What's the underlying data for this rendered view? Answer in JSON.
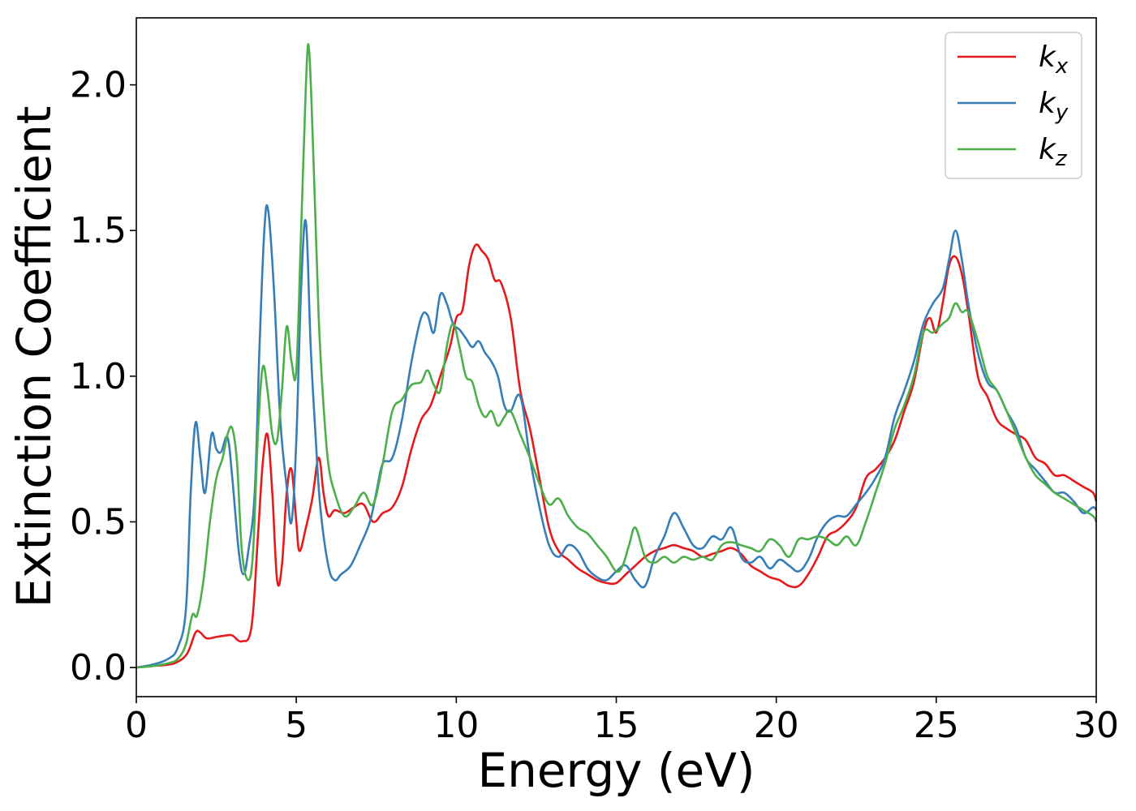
{
  "chart_data": {
    "type": "line",
    "xlabel": "Energy (eV)",
    "ylabel": "Extinction Coefficient",
    "xlim": [
      0,
      30
    ],
    "ylim": [
      -0.1,
      2.23
    ],
    "xticks": [
      0,
      5,
      10,
      15,
      20,
      25,
      30
    ],
    "xtick_labels": [
      "0",
      "5",
      "10",
      "15",
      "20",
      "25",
      "30"
    ],
    "yticks": [
      0.0,
      0.5,
      1.0,
      1.5,
      2.0
    ],
    "ytick_labels": [
      "0.0",
      "0.5",
      "1.0",
      "1.5",
      "2.0"
    ],
    "grid": false,
    "legend_position": "top-right",
    "series": [
      {
        "name": "k_x",
        "label_base": "k",
        "label_sub": "x",
        "color": "#e41a1c",
        "x": [
          0,
          0.5,
          1.0,
          1.3,
          1.6,
          1.85,
          2.0,
          2.2,
          2.5,
          2.8,
          3.0,
          3.3,
          3.6,
          3.8,
          3.95,
          4.1,
          4.25,
          4.4,
          4.55,
          4.7,
          4.85,
          5.0,
          5.1,
          5.3,
          5.5,
          5.7,
          5.85,
          6.0,
          6.2,
          6.5,
          6.8,
          7.1,
          7.4,
          7.7,
          8.0,
          8.3,
          8.6,
          8.9,
          9.2,
          9.5,
          9.8,
          10.0,
          10.2,
          10.4,
          10.6,
          10.8,
          11.0,
          11.2,
          11.4,
          11.7,
          12.0,
          12.3,
          12.6,
          12.9,
          13.2,
          13.5,
          13.8,
          14.1,
          14.4,
          14.7,
          15.0,
          15.3,
          15.6,
          15.9,
          16.2,
          16.5,
          16.8,
          17.1,
          17.4,
          17.7,
          18.0,
          18.3,
          18.6,
          18.9,
          19.2,
          19.5,
          19.8,
          20.1,
          20.4,
          20.7,
          21.0,
          21.3,
          21.6,
          21.9,
          22.2,
          22.5,
          22.8,
          23.1,
          23.4,
          23.7,
          24.0,
          24.3,
          24.6,
          24.8,
          25.0,
          25.2,
          25.4,
          25.6,
          25.8,
          26.0,
          26.3,
          26.6,
          26.9,
          27.2,
          27.5,
          27.8,
          28.1,
          28.4,
          28.7,
          29.0,
          29.3,
          29.6,
          29.9,
          30.0
        ],
        "y": [
          0.0,
          0.005,
          0.01,
          0.02,
          0.05,
          0.12,
          0.12,
          0.1,
          0.105,
          0.11,
          0.11,
          0.09,
          0.14,
          0.45,
          0.7,
          0.8,
          0.6,
          0.3,
          0.35,
          0.6,
          0.68,
          0.5,
          0.4,
          0.48,
          0.58,
          0.72,
          0.6,
          0.52,
          0.54,
          0.53,
          0.55,
          0.56,
          0.5,
          0.53,
          0.55,
          0.62,
          0.75,
          0.85,
          0.9,
          1.0,
          1.1,
          1.2,
          1.23,
          1.38,
          1.45,
          1.43,
          1.4,
          1.33,
          1.32,
          1.2,
          0.95,
          0.82,
          0.65,
          0.48,
          0.4,
          0.37,
          0.34,
          0.32,
          0.3,
          0.29,
          0.29,
          0.32,
          0.35,
          0.38,
          0.4,
          0.41,
          0.42,
          0.41,
          0.4,
          0.38,
          0.39,
          0.4,
          0.41,
          0.39,
          0.35,
          0.33,
          0.31,
          0.3,
          0.28,
          0.28,
          0.32,
          0.38,
          0.45,
          0.47,
          0.5,
          0.55,
          0.65,
          0.68,
          0.72,
          0.78,
          0.88,
          0.98,
          1.15,
          1.2,
          1.15,
          1.25,
          1.38,
          1.41,
          1.35,
          1.22,
          1.0,
          0.93,
          0.85,
          0.82,
          0.8,
          0.78,
          0.72,
          0.7,
          0.66,
          0.66,
          0.64,
          0.62,
          0.6,
          0.57
        ]
      },
      {
        "name": "k_y",
        "label_base": "k",
        "label_sub": "y",
        "color": "#377eb8",
        "x": [
          0,
          0.5,
          1.0,
          1.3,
          1.55,
          1.7,
          1.85,
          2.0,
          2.15,
          2.35,
          2.5,
          2.65,
          2.85,
          3.0,
          3.2,
          3.35,
          3.5,
          3.7,
          3.85,
          4.0,
          4.12,
          4.3,
          4.5,
          4.7,
          4.85,
          5.0,
          5.15,
          5.3,
          5.45,
          5.6,
          5.75,
          6.0,
          6.2,
          6.4,
          6.7,
          7.0,
          7.3,
          7.5,
          7.7,
          8.0,
          8.3,
          8.6,
          8.9,
          9.1,
          9.3,
          9.5,
          9.7,
          9.9,
          10.1,
          10.3,
          10.5,
          10.7,
          10.9,
          11.1,
          11.3,
          11.5,
          11.7,
          12.0,
          12.3,
          12.6,
          12.9,
          13.2,
          13.5,
          13.8,
          14.1,
          14.4,
          14.7,
          15.0,
          15.3,
          15.6,
          15.9,
          16.2,
          16.5,
          16.8,
          17.1,
          17.4,
          17.7,
          18.0,
          18.3,
          18.6,
          18.9,
          19.2,
          19.5,
          19.8,
          20.1,
          20.4,
          20.7,
          21.0,
          21.3,
          21.6,
          21.9,
          22.2,
          22.5,
          22.8,
          23.1,
          23.4,
          23.7,
          24.0,
          24.3,
          24.6,
          24.9,
          25.2,
          25.4,
          25.6,
          25.8,
          26.0,
          26.3,
          26.6,
          26.9,
          27.2,
          27.5,
          27.8,
          28.1,
          28.4,
          28.7,
          29.0,
          29.3,
          29.6,
          29.9,
          30.0
        ],
        "y": [
          0.0,
          0.01,
          0.03,
          0.07,
          0.2,
          0.6,
          0.84,
          0.72,
          0.6,
          0.8,
          0.75,
          0.74,
          0.79,
          0.65,
          0.4,
          0.32,
          0.4,
          0.6,
          1.1,
          1.5,
          1.57,
          1.3,
          0.85,
          0.62,
          0.5,
          0.78,
          1.3,
          1.53,
          1.1,
          0.8,
          0.55,
          0.35,
          0.3,
          0.32,
          0.35,
          0.42,
          0.5,
          0.6,
          0.7,
          0.72,
          0.85,
          1.05,
          1.2,
          1.21,
          1.15,
          1.28,
          1.25,
          1.18,
          1.16,
          1.13,
          1.1,
          1.12,
          1.08,
          1.05,
          1.0,
          0.9,
          0.88,
          0.93,
          0.72,
          0.55,
          0.42,
          0.38,
          0.42,
          0.4,
          0.34,
          0.31,
          0.3,
          0.33,
          0.35,
          0.3,
          0.28,
          0.38,
          0.45,
          0.53,
          0.48,
          0.42,
          0.41,
          0.45,
          0.44,
          0.48,
          0.38,
          0.36,
          0.38,
          0.34,
          0.37,
          0.35,
          0.33,
          0.37,
          0.45,
          0.5,
          0.52,
          0.52,
          0.56,
          0.6,
          0.65,
          0.72,
          0.86,
          0.95,
          1.05,
          1.18,
          1.25,
          1.3,
          1.4,
          1.5,
          1.4,
          1.25,
          1.08,
          0.98,
          0.95,
          0.88,
          0.82,
          0.72,
          0.68,
          0.64,
          0.6,
          0.6,
          0.57,
          0.53,
          0.55,
          0.54
        ]
      },
      {
        "name": "k_z",
        "label_base": "k",
        "label_sub": "z",
        "color": "#4daf4a",
        "x": [
          0,
          0.5,
          1.0,
          1.3,
          1.55,
          1.75,
          1.9,
          2.1,
          2.3,
          2.5,
          2.7,
          2.85,
          3.0,
          3.15,
          3.3,
          3.5,
          3.65,
          3.8,
          3.95,
          4.1,
          4.25,
          4.4,
          4.55,
          4.7,
          4.85,
          5.0,
          5.15,
          5.3,
          5.4,
          5.55,
          5.7,
          5.85,
          6.0,
          6.2,
          6.5,
          6.8,
          7.1,
          7.4,
          7.7,
          8.0,
          8.3,
          8.6,
          8.9,
          9.1,
          9.3,
          9.5,
          9.7,
          9.9,
          10.1,
          10.3,
          10.5,
          10.7,
          10.9,
          11.1,
          11.3,
          11.5,
          11.7,
          12.0,
          12.3,
          12.6,
          12.9,
          13.2,
          13.5,
          13.8,
          14.1,
          14.4,
          14.7,
          15.0,
          15.2,
          15.4,
          15.6,
          15.9,
          16.2,
          16.5,
          16.8,
          17.1,
          17.4,
          17.7,
          18.0,
          18.3,
          18.6,
          18.9,
          19.2,
          19.5,
          19.8,
          20.1,
          20.4,
          20.7,
          21.0,
          21.3,
          21.6,
          21.9,
          22.2,
          22.5,
          22.8,
          23.1,
          23.4,
          23.7,
          24.0,
          24.3,
          24.6,
          24.9,
          25.2,
          25.4,
          25.6,
          25.8,
          26.0,
          26.3,
          26.6,
          26.9,
          27.2,
          27.5,
          27.8,
          28.1,
          28.4,
          28.7,
          29.0,
          29.3,
          29.6,
          29.9,
          30.0
        ],
        "y": [
          0.0,
          0.005,
          0.015,
          0.03,
          0.08,
          0.18,
          0.18,
          0.3,
          0.5,
          0.65,
          0.72,
          0.8,
          0.82,
          0.7,
          0.4,
          0.3,
          0.4,
          0.8,
          1.03,
          0.95,
          0.8,
          0.78,
          0.95,
          1.17,
          1.05,
          1.02,
          1.5,
          2.0,
          2.12,
          1.7,
          1.2,
          0.9,
          0.7,
          0.6,
          0.52,
          0.55,
          0.6,
          0.56,
          0.7,
          0.88,
          0.92,
          0.97,
          0.98,
          1.02,
          0.97,
          0.95,
          1.1,
          1.18,
          1.1,
          1.0,
          0.98,
          0.9,
          0.86,
          0.88,
          0.83,
          0.86,
          0.88,
          0.8,
          0.72,
          0.63,
          0.56,
          0.58,
          0.52,
          0.48,
          0.46,
          0.42,
          0.38,
          0.33,
          0.35,
          0.42,
          0.48,
          0.38,
          0.36,
          0.38,
          0.36,
          0.38,
          0.37,
          0.38,
          0.37,
          0.42,
          0.43,
          0.42,
          0.41,
          0.4,
          0.44,
          0.42,
          0.38,
          0.44,
          0.44,
          0.45,
          0.44,
          0.42,
          0.45,
          0.42,
          0.5,
          0.6,
          0.7,
          0.82,
          0.9,
          1.0,
          1.15,
          1.15,
          1.18,
          1.2,
          1.25,
          1.22,
          1.22,
          1.12,
          1.0,
          0.95,
          0.88,
          0.8,
          0.72,
          0.66,
          0.63,
          0.6,
          0.58,
          0.56,
          0.54,
          0.52,
          0.5
        ]
      }
    ]
  }
}
